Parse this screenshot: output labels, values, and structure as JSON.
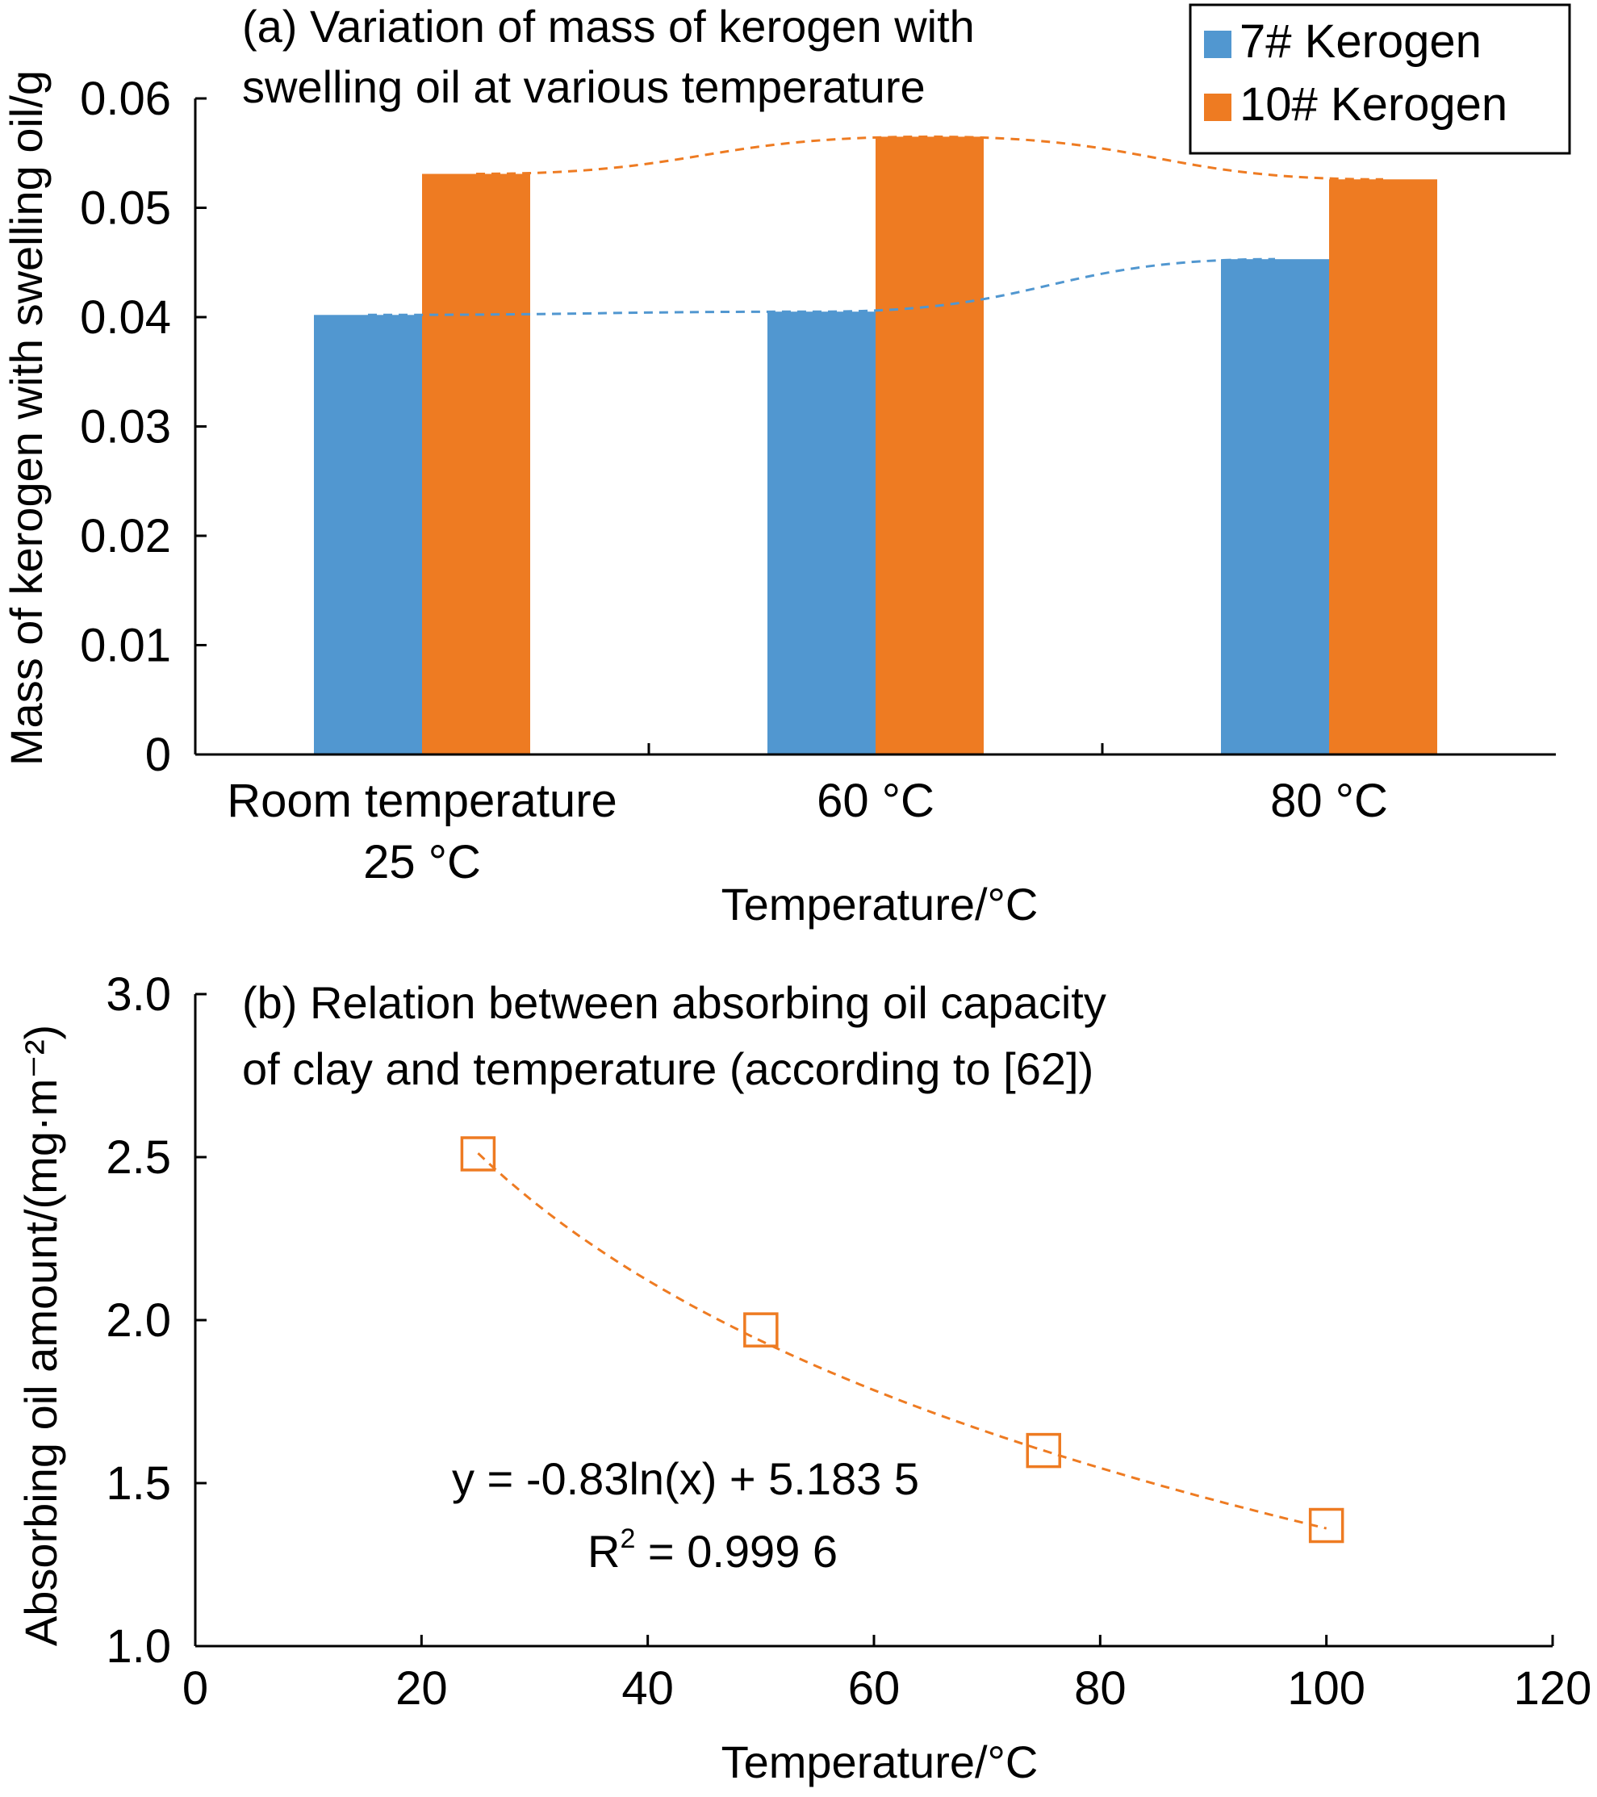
{
  "chart_data": [
    {
      "type": "bar",
      "title_line1": "(a) Variation of mass of kerogen with",
      "title_line2": "swelling oil at various temperature",
      "xlabel": "Temperature/°C",
      "ylabel": "Mass of kerogen with swelling oil/g",
      "ylim": [
        0,
        0.06
      ],
      "yticks": [
        "0",
        "0.01",
        "0.02",
        "0.03",
        "0.04",
        "0.05",
        "0.06"
      ],
      "categories": [
        {
          "line1": "Room temperature",
          "line2": "25 °C"
        },
        {
          "line1": "60 °C",
          "line2": ""
        },
        {
          "line1": "80 °C",
          "line2": ""
        }
      ],
      "series": [
        {
          "name": "7# Kerogen",
          "color": "#5197d0",
          "values": [
            0.0402,
            0.0405,
            0.0453
          ]
        },
        {
          "name": "10# Kerogen",
          "color": "#ee7b22",
          "values": [
            0.0531,
            0.0565,
            0.0526
          ]
        }
      ],
      "legend": "top-right",
      "trend_lines": "dashed"
    },
    {
      "type": "scatter",
      "title_line1": "(b) Relation between absorbing oil capacity",
      "title_line2": "of clay and temperature (according to [62])",
      "xlabel": "Temperature/°C",
      "ylabel": "Absorbing oil amount/(mg·m⁻²)",
      "xlim": [
        0,
        120
      ],
      "ylim": [
        1.0,
        3.0
      ],
      "xticks": [
        "0",
        "20",
        "40",
        "60",
        "80",
        "100",
        "120"
      ],
      "yticks": [
        "1.0",
        "1.5",
        "2.0",
        "2.5",
        "3.0"
      ],
      "points": [
        {
          "x": 25,
          "y": 2.51
        },
        {
          "x": 50,
          "y": 1.97
        },
        {
          "x": 75,
          "y": 1.6
        },
        {
          "x": 100,
          "y": 1.37
        }
      ],
      "color": "#ee7b22",
      "marker": "hollow-square",
      "fit": {
        "type": "logarithmic",
        "a": -0.83,
        "b": 5.1835,
        "x_from": 25,
        "x_to": 100
      },
      "equation": "y = -0.83ln(x) + 5.183 5",
      "r_squared_prefix": "R",
      "r_squared_exp": "2",
      "r_squared_value": " = 0.999 6"
    }
  ]
}
